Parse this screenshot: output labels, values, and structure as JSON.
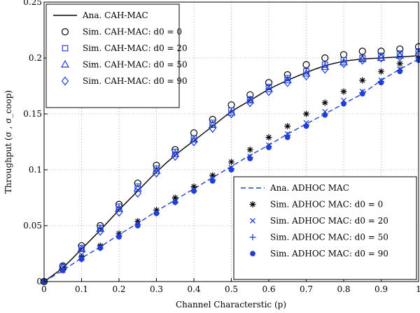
{
  "chart_data": {
    "type": "line",
    "xlabel": "Channel Characterstic (p)",
    "ylabel": "Throughput (σ , σ_coop)",
    "xlim": [
      0,
      1
    ],
    "ylim": [
      0,
      0.25
    ],
    "x_ticks": [
      "0",
      "0.1",
      "0.2",
      "0.3",
      "0.4",
      "0.5",
      "0.6",
      "0.7",
      "0.8",
      "0.9",
      "1"
    ],
    "y_ticks": [
      "0",
      "0.05",
      "0.1",
      "0.15",
      "0.2",
      "0.25"
    ],
    "grid": true,
    "legends": [
      {
        "placement": "top-left",
        "entries": [
          "Ana.  CAH-MAC",
          "Sim.  CAH-MAC: d0 = 0",
          "Sim.  CAH-MAC: d0 = 20",
          "Sim.  CAH-MAC: d0 = 50",
          "Sim.  CAH-MAC: d0 = 90"
        ]
      },
      {
        "placement": "bottom-right",
        "entries": [
          "Ana.  ADHOC MAC",
          "Sim.  ADHOC MAC: d0 = 0",
          "Sim.  ADHOC MAC: d0 = 20",
          "Sim.  ADHOC MAC: d0 = 50",
          "Sim.  ADHOC MAC: d0 = 90"
        ]
      }
    ],
    "x": [
      0,
      0.05,
      0.1,
      0.15,
      0.2,
      0.25,
      0.3,
      0.35,
      0.4,
      0.45,
      0.5,
      0.55,
      0.6,
      0.65,
      0.7,
      0.75,
      0.8,
      0.85,
      0.9,
      0.95,
      1.0
    ],
    "series": [
      {
        "name": "Ana.  CAH-MAC",
        "style": "line",
        "color": "#000000",
        "values": [
          0,
          0.0125,
          0.029,
          0.046,
          0.064,
          0.081,
          0.098,
          0.113,
          0.126,
          0.139,
          0.152,
          0.162,
          0.172,
          0.18,
          0.187,
          0.193,
          0.197,
          0.199,
          0.2,
          0.201,
          0.202
        ]
      },
      {
        "name": "Sim.  CAH-MAC: d0 = 0",
        "style": "marker",
        "marker": "circle",
        "color": "#000000",
        "values": [
          0,
          0.014,
          0.032,
          0.05,
          0.069,
          0.088,
          0.104,
          0.118,
          0.133,
          0.145,
          0.158,
          0.167,
          0.178,
          0.185,
          0.194,
          0.2,
          0.203,
          0.206,
          0.206,
          0.208,
          0.21
        ]
      },
      {
        "name": "Sim.  CAH-MAC: d0 = 20",
        "style": "marker",
        "marker": "square",
        "color": "#1f3fd6",
        "values": [
          0,
          0.013,
          0.03,
          0.048,
          0.067,
          0.085,
          0.101,
          0.116,
          0.128,
          0.142,
          0.153,
          0.163,
          0.174,
          0.182,
          0.188,
          0.194,
          0.198,
          0.2,
          0.202,
          0.204,
          0.206
        ]
      },
      {
        "name": "Sim.  CAH-MAC: d0 = 50",
        "style": "marker",
        "marker": "triangle",
        "color": "#1f3fd6",
        "values": [
          0,
          0.013,
          0.029,
          0.047,
          0.065,
          0.083,
          0.099,
          0.114,
          0.127,
          0.14,
          0.151,
          0.162,
          0.172,
          0.18,
          0.186,
          0.192,
          0.196,
          0.199,
          0.2,
          0.202,
          0.204
        ]
      },
      {
        "name": "Sim.  CAH-MAC: d0 = 90",
        "style": "marker",
        "marker": "diamond",
        "color": "#1f3fd6",
        "values": [
          0,
          0.012,
          0.027,
          0.045,
          0.062,
          0.079,
          0.097,
          0.112,
          0.125,
          0.137,
          0.15,
          0.16,
          0.17,
          0.178,
          0.184,
          0.19,
          0.195,
          0.198,
          0.2,
          0.201,
          0.203
        ]
      },
      {
        "name": "Ana.  ADHOC MAC",
        "style": "dashed",
        "color": "#1f3fd6",
        "values": [
          0,
          0.01,
          0.021,
          0.031,
          0.042,
          0.052,
          0.063,
          0.073,
          0.083,
          0.093,
          0.103,
          0.113,
          0.122,
          0.132,
          0.141,
          0.15,
          0.159,
          0.168,
          0.18,
          0.19,
          0.199
        ]
      },
      {
        "name": "Sim.  ADHOC MAC: d0 = 0",
        "style": "marker",
        "marker": "asterisk",
        "color": "#000000",
        "values": [
          0,
          0.011,
          0.022,
          0.032,
          0.043,
          0.054,
          0.064,
          0.075,
          0.085,
          0.095,
          0.107,
          0.118,
          0.129,
          0.139,
          0.15,
          0.16,
          0.17,
          0.18,
          0.188,
          0.195,
          0.2
        ]
      },
      {
        "name": "Sim.  ADHOC MAC: d0 = 20",
        "style": "marker",
        "marker": "x",
        "color": "#1f3fd6",
        "values": [
          0,
          0.01,
          0.021,
          0.031,
          0.041,
          0.052,
          0.062,
          0.072,
          0.082,
          0.092,
          0.102,
          0.112,
          0.122,
          0.132,
          0.142,
          0.152,
          0.162,
          0.17,
          0.18,
          0.19,
          0.199
        ]
      },
      {
        "name": "Sim.  ADHOC MAC: d0 = 50",
        "style": "marker",
        "marker": "plus",
        "color": "#1f3fd6",
        "values": [
          0,
          0.01,
          0.02,
          0.03,
          0.041,
          0.051,
          0.061,
          0.071,
          0.081,
          0.091,
          0.101,
          0.111,
          0.121,
          0.131,
          0.14,
          0.15,
          0.16,
          0.169,
          0.179,
          0.189,
          0.198
        ]
      },
      {
        "name": "Sim.  ADHOC MAC: d0 = 90",
        "style": "marker",
        "marker": "dot",
        "color": "#1f3fd6",
        "values": [
          0,
          0.01,
          0.02,
          0.03,
          0.04,
          0.05,
          0.061,
          0.071,
          0.081,
          0.09,
          0.1,
          0.11,
          0.12,
          0.129,
          0.139,
          0.149,
          0.159,
          0.168,
          0.178,
          0.188,
          0.198
        ]
      }
    ]
  }
}
